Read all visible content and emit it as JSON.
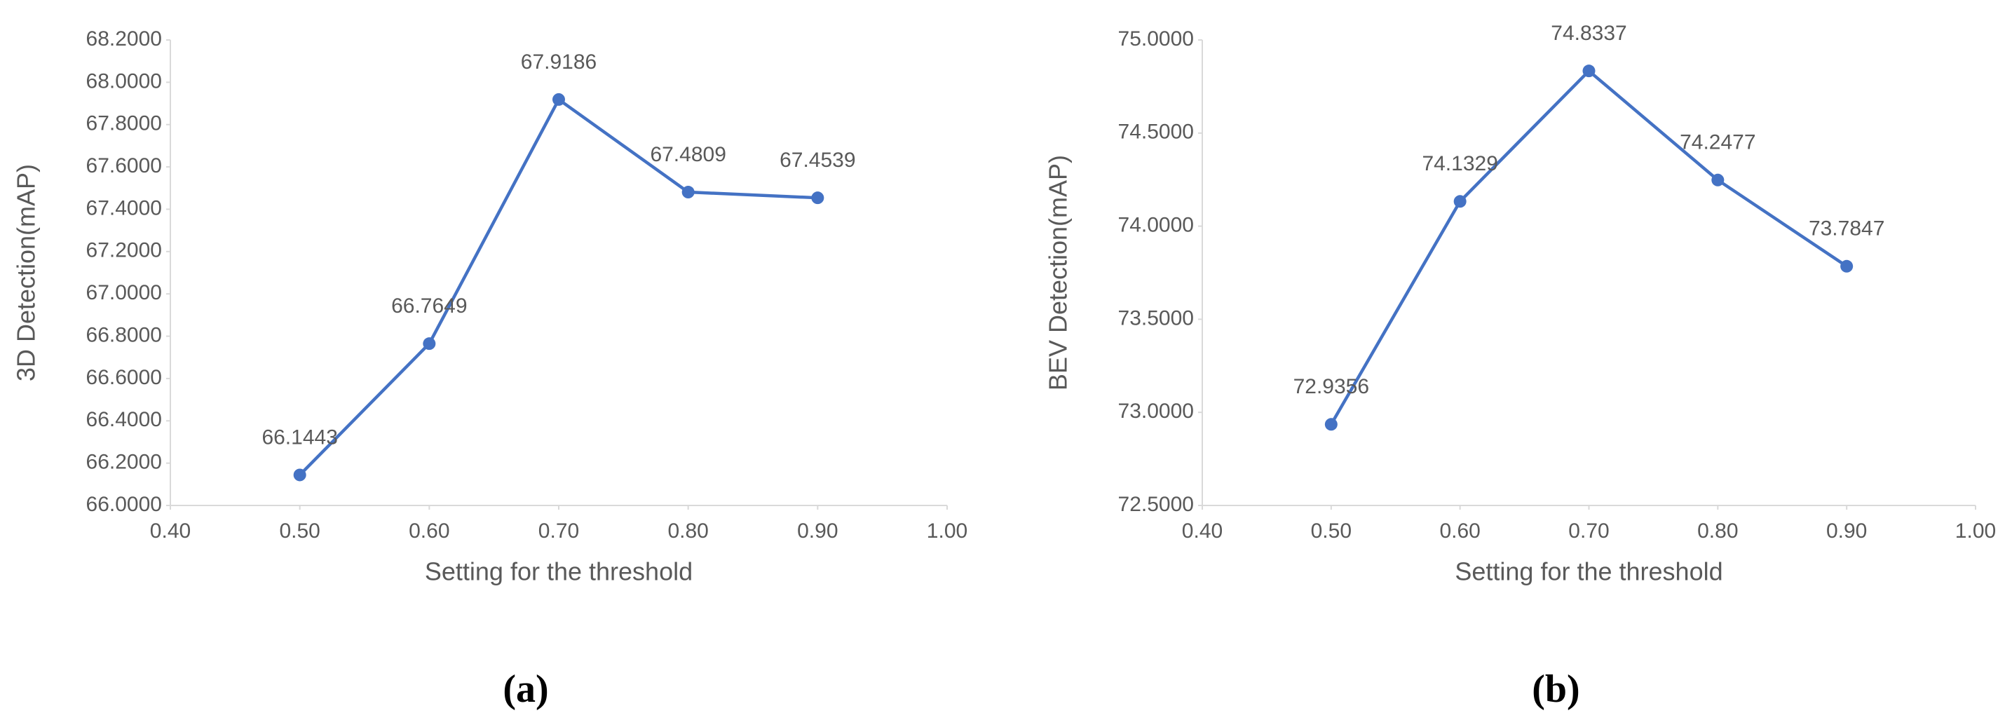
{
  "chart_data": [
    {
      "type": "line",
      "caption": "(a)",
      "x_label": "Setting for the threshold",
      "y_label": "3D Detection(mAP)",
      "x": [
        0.5,
        0.6,
        0.7,
        0.8,
        0.9
      ],
      "values": [
        66.1443,
        66.7649,
        67.9186,
        67.4809,
        67.4539
      ],
      "color": "#4472c4",
      "xlim": [
        0.4,
        1.0
      ],
      "xticks": [
        {
          "value": 0.4,
          "label": "0.40"
        },
        {
          "value": 0.5,
          "label": "0.50"
        },
        {
          "value": 0.6,
          "label": "0.60"
        },
        {
          "value": 0.7,
          "label": "0.70"
        },
        {
          "value": 0.8,
          "label": "0.80"
        },
        {
          "value": 0.9,
          "label": "0.90"
        },
        {
          "value": 1.0,
          "label": "1.00"
        }
      ],
      "ylim": [
        66.0,
        68.2
      ],
      "yticks": [
        {
          "value": 66.0,
          "label": "66.0000"
        },
        {
          "value": 66.2,
          "label": "66.2000"
        },
        {
          "value": 66.4,
          "label": "66.4000"
        },
        {
          "value": 66.6,
          "label": "66.6000"
        },
        {
          "value": 66.8,
          "label": "66.8000"
        },
        {
          "value": 67.0,
          "label": "67.0000"
        },
        {
          "value": 67.2,
          "label": "67.2000"
        },
        {
          "value": 67.4,
          "label": "67.4000"
        },
        {
          "value": 67.6,
          "label": "67.6000"
        },
        {
          "value": 67.8,
          "label": "67.8000"
        },
        {
          "value": 68.0,
          "label": "68.0000"
        },
        {
          "value": 68.2,
          "label": "68.2000"
        }
      ],
      "grid": false
    },
    {
      "type": "line",
      "caption": "(b)",
      "x_label": "Setting for the threshold",
      "y_label": "BEV Detection(mAP)",
      "x": [
        0.5,
        0.6,
        0.7,
        0.8,
        0.9
      ],
      "values": [
        72.9356,
        74.1329,
        74.8337,
        74.2477,
        73.7847
      ],
      "color": "#4472c4",
      "xlim": [
        0.4,
        1.0
      ],
      "xticks": [
        {
          "value": 0.4,
          "label": "0.40"
        },
        {
          "value": 0.5,
          "label": "0.50"
        },
        {
          "value": 0.6,
          "label": "0.60"
        },
        {
          "value": 0.7,
          "label": "0.70"
        },
        {
          "value": 0.8,
          "label": "0.80"
        },
        {
          "value": 0.9,
          "label": "0.90"
        },
        {
          "value": 1.0,
          "label": "1.00"
        }
      ],
      "ylim": [
        72.5,
        75.0
      ],
      "yticks": [
        {
          "value": 72.5,
          "label": "72.5000"
        },
        {
          "value": 73.0,
          "label": "73.0000"
        },
        {
          "value": 73.5,
          "label": "73.5000"
        },
        {
          "value": 74.0,
          "label": "74.0000"
        },
        {
          "value": 74.5,
          "label": "74.5000"
        },
        {
          "value": 75.0,
          "label": "75.0000"
        }
      ],
      "grid": false
    }
  ]
}
